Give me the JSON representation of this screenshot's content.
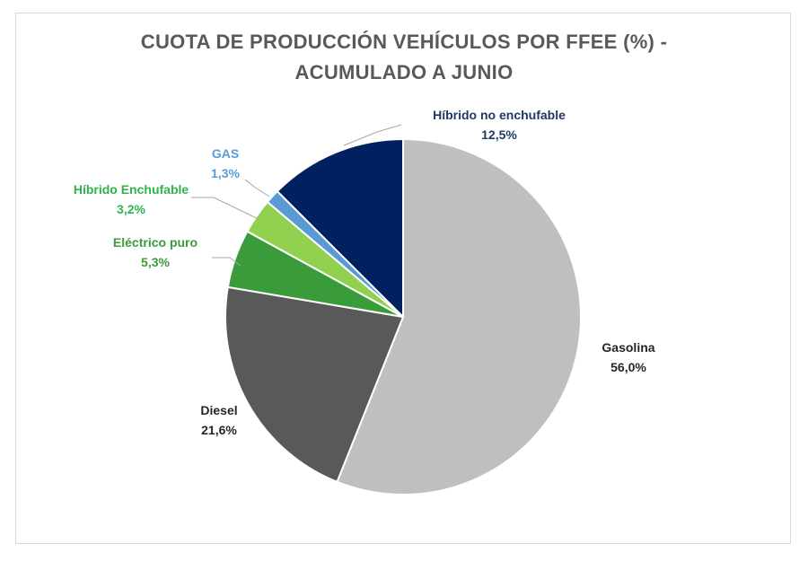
{
  "chart_data": {
    "type": "pie",
    "title_line1": "CUOTA DE PRODUCCIÓN VEHÍCULOS POR FFEE (%)  -",
    "title_line2": "ACUMULADO A JUNIO",
    "slices": [
      {
        "label": "Gasolina",
        "value": 56.0,
        "value_label": "56,0%",
        "color": "#bfbfbf",
        "label_color": "#262626"
      },
      {
        "label": "Diesel",
        "value": 21.6,
        "value_label": "21,6%",
        "color": "#595959",
        "label_color": "#262626"
      },
      {
        "label": "Eléctrico puro",
        "value": 5.3,
        "value_label": "5,3%",
        "color": "#3a9b3a",
        "label_color": "#3a9b3a"
      },
      {
        "label": "Híbrido Enchufable",
        "value": 3.2,
        "value_label": "3,2%",
        "color": "#92d050",
        "label_color": "#2fb34a"
      },
      {
        "label": "GAS",
        "value": 1.3,
        "value_label": "1,3%",
        "color": "#5b9bd5",
        "label_color": "#5b9bd5"
      },
      {
        "label": "Híbrido no enchufable",
        "value": 12.5,
        "value_label": "12,5%",
        "color": "#002060",
        "label_color": "#1f3864"
      }
    ]
  }
}
